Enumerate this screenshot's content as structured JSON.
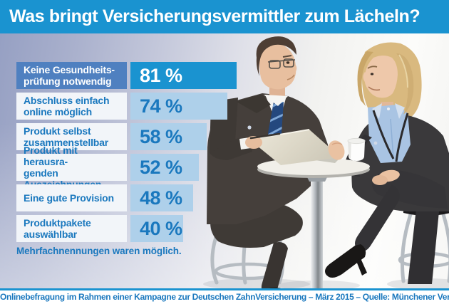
{
  "header": {
    "title": "Was bringt Versicherungsvermittler zum Lächeln?"
  },
  "chart_data": {
    "type": "bar",
    "orientation": "horizontal",
    "unit": "%",
    "categories": [
      "Keine Gesundheits-\nprüfung notwendig",
      "Abschluss einfach\nonline möglich",
      "Produkt selbst\nzusammenstellbar",
      "Produkt mit herausra-\ngenden Auszeichnungen",
      "Eine gute Provision",
      "Produktpakete\nauswählbar"
    ],
    "values": [
      81,
      74,
      58,
      52,
      48,
      40
    ],
    "value_labels": [
      "81 %",
      "74 %",
      "58 %",
      "52 %",
      "48 %",
      "40 %"
    ],
    "highlight_index": 0,
    "xlim": [
      0,
      100
    ],
    "legend": "none",
    "note": "Mehrfachnennungen waren möglich."
  },
  "footer": {
    "source_text": "Onlinebefragung im Rahmen einer Kampagne zur Deutschen ZahnVersicherung – März 2015 – Quelle: Münchener Verein"
  },
  "photo": {
    "description": "Zwei Versicherungsvermittler im Gespräch an einem Stehtisch mit Laptop und Kaffeetasse"
  },
  "colors": {
    "header_bg": "#1a93d0",
    "header_text": "#ffffff",
    "divider": "#1a93d0",
    "footer_bg": "#ffffff",
    "text_blue": "#1a78be",
    "label_bg": "#f2f5f9",
    "bar_bg": "#aed0ea",
    "highlight_label_bg": "#4f80c0",
    "highlight_bar_bg": "#1a93d0",
    "highlight_text": "#ffffff"
  }
}
